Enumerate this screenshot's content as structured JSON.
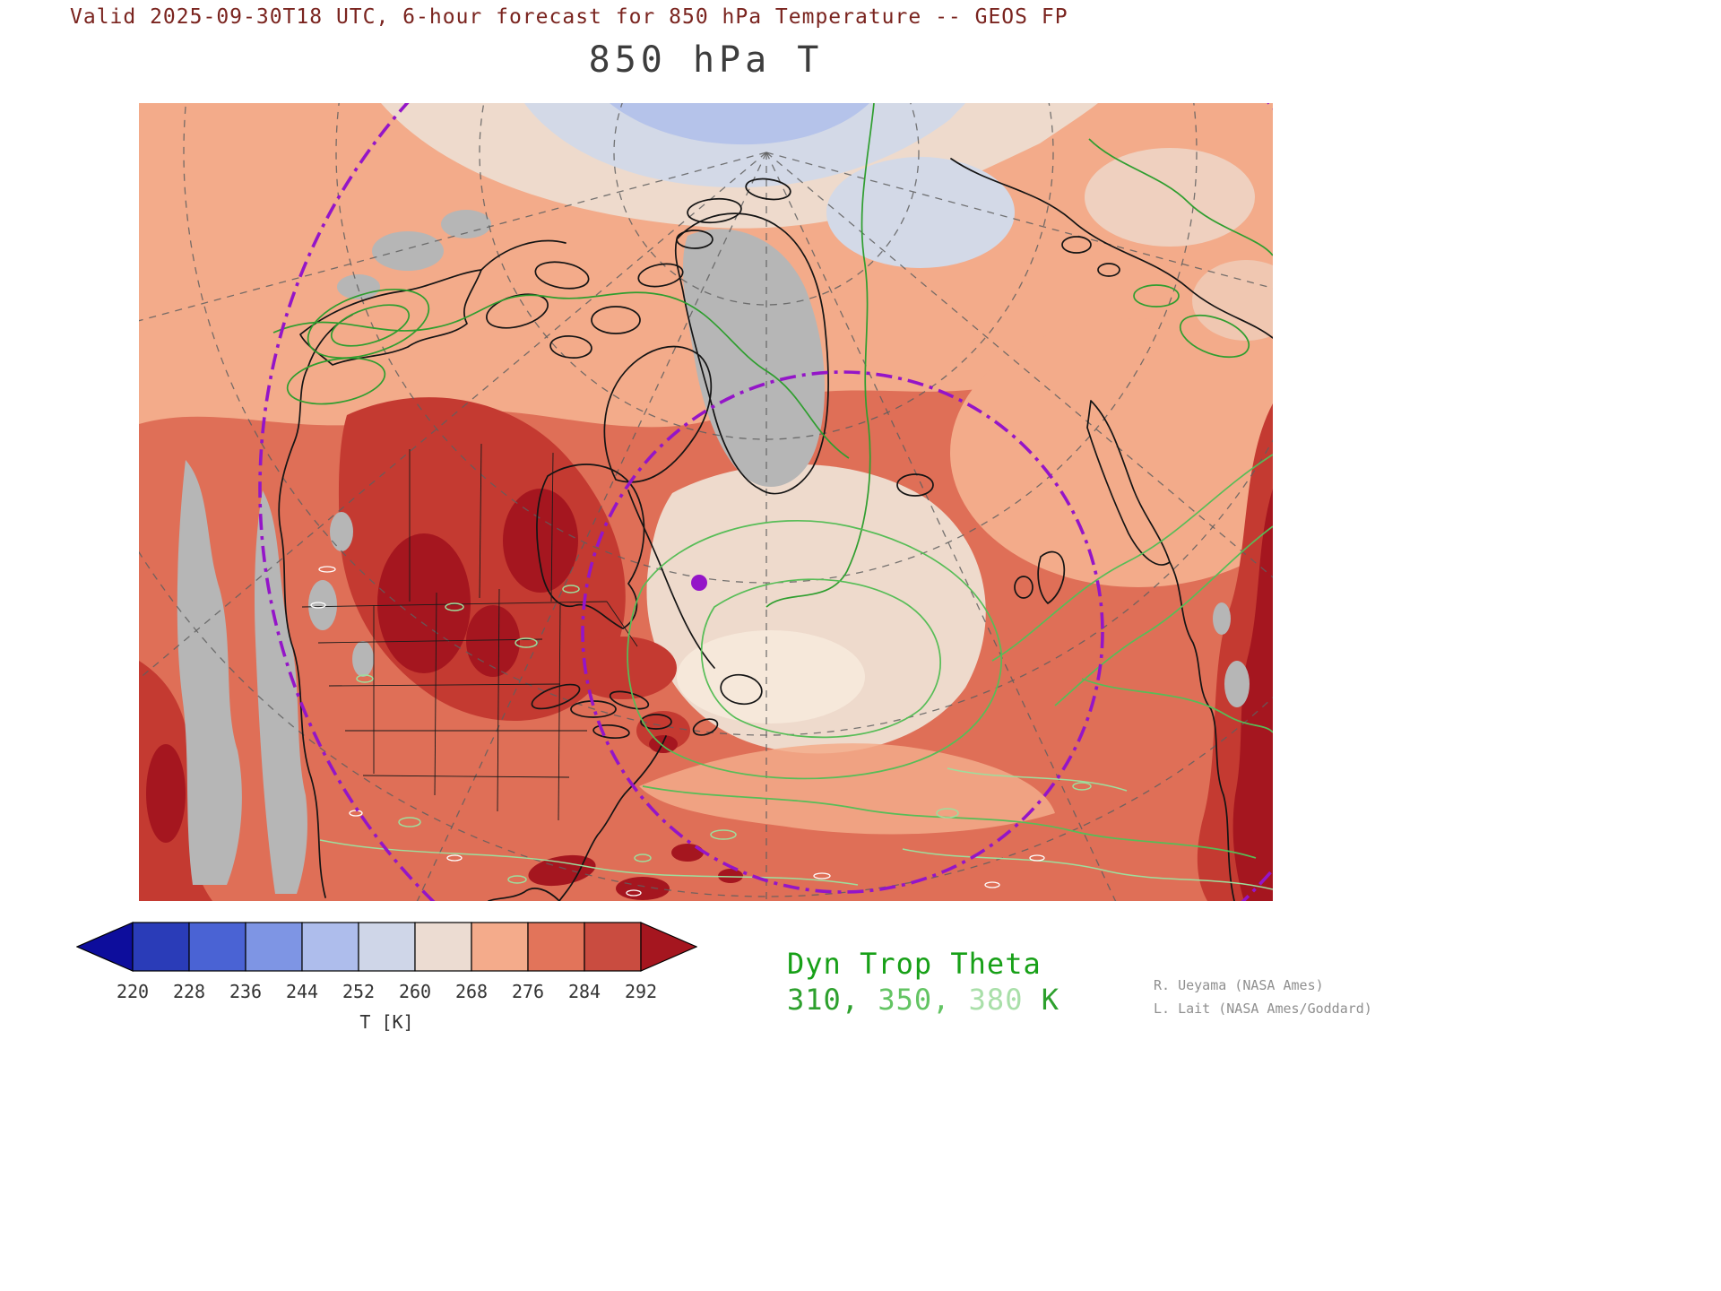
{
  "header": {
    "valid_line": "Valid 2025-09-30T18 UTC, 6-hour forecast for 850 hPa Temperature -- GEOS FP",
    "title": "850 hPa T"
  },
  "colorbar": {
    "unit_label": "T [K]",
    "ticks": [
      "220",
      "228",
      "236",
      "244",
      "252",
      "260",
      "268",
      "276",
      "284",
      "292"
    ],
    "cell_colors": [
      "#2a3cb8",
      "#4a63d4",
      "#7e95e4",
      "#aebdec",
      "#cfd6e8",
      "#ecdcd2",
      "#f4ab8b",
      "#e2745a",
      "#c94c40"
    ],
    "under_color": "#0d0d9c",
    "over_color": "#a5161f"
  },
  "annotations": {
    "contour_label": "Dyn Trop Theta",
    "contour_label_color": "#17a017",
    "contour_values": [
      {
        "text": "310,",
        "color": "#2da02d"
      },
      {
        "text": "350,",
        "color": "#63c463"
      },
      {
        "text": "380",
        "color": "#a9dfa9"
      },
      {
        "text": "K",
        "color": "#2da02d"
      }
    ]
  },
  "credits": {
    "line1": "R. Ueyama (NASA Ames)",
    "line2": "L. Lait (NASA Ames/Goddard)"
  },
  "map_palette": {
    "base_276_284": "#df6f57",
    "band_268_276": "#f3ab8a",
    "cream_260_268": "#eedacc",
    "pale_252_260": "#d3d9e7",
    "blue_244_252": "#b5c3ea",
    "palest_core": "#f6e8da",
    "terrain_gray": "#b6b6b6",
    "hot_284_292": "#c43a31",
    "hot_over_292": "#a5161f",
    "coastline": "#141414",
    "graticule": "#5f5f5f",
    "theta_310": "#2f9e2f",
    "theta_350": "#57bd57",
    "theta_380": "#9ddf9d",
    "latitude_ring": "#9415c8"
  },
  "chart_data": {
    "type": "heatmap",
    "title": "850 hPa T",
    "field": "850 hPa Temperature",
    "model": "GEOS FP",
    "valid_time": "2025-09-30T18 UTC",
    "forecast": "6-hour forecast",
    "colorbar_label": "T [K]",
    "colorbar_tick_values_K": [
      220,
      228,
      236,
      244,
      252,
      260,
      268,
      276,
      284,
      292
    ],
    "colorbar_interval_K": 8,
    "overlay_contours": {
      "name": "Dyn Trop Theta",
      "levels_K": [
        310,
        350,
        380
      ]
    }
  }
}
